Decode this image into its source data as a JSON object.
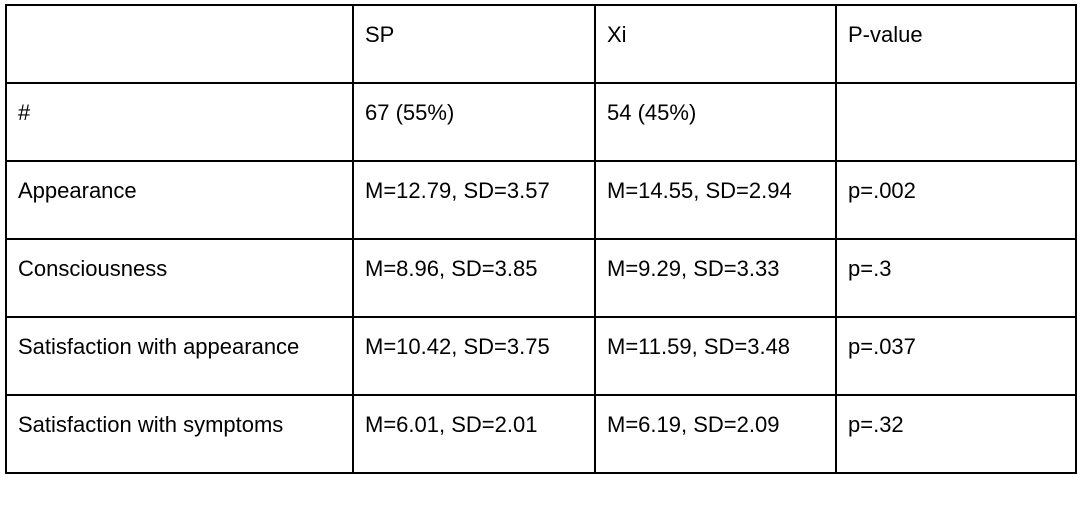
{
  "table": {
    "columns": [
      "SP",
      "Xi",
      "P-value"
    ],
    "rows": [
      [
        "#",
        "67 (55%)",
        "54 (45%)"
      ],
      [
        "Appearance",
        "M=12.79, SD=3.57",
        "M=14.55, SD=2.94",
        "p=.002"
      ],
      [
        "Consciousness",
        "M=8.96, SD=3.85",
        "M=9.29, SD=3.33",
        "p=.3"
      ],
      [
        "Satisfaction with appearance",
        "M=10.42, SD=3.75",
        "M=11.59, SD=3.48",
        "p=.037"
      ],
      [
        "Satisfaction with symptoms",
        "M=6.01, SD=2.01",
        "M=6.19, SD=2.09",
        "p=.32"
      ]
    ]
  }
}
